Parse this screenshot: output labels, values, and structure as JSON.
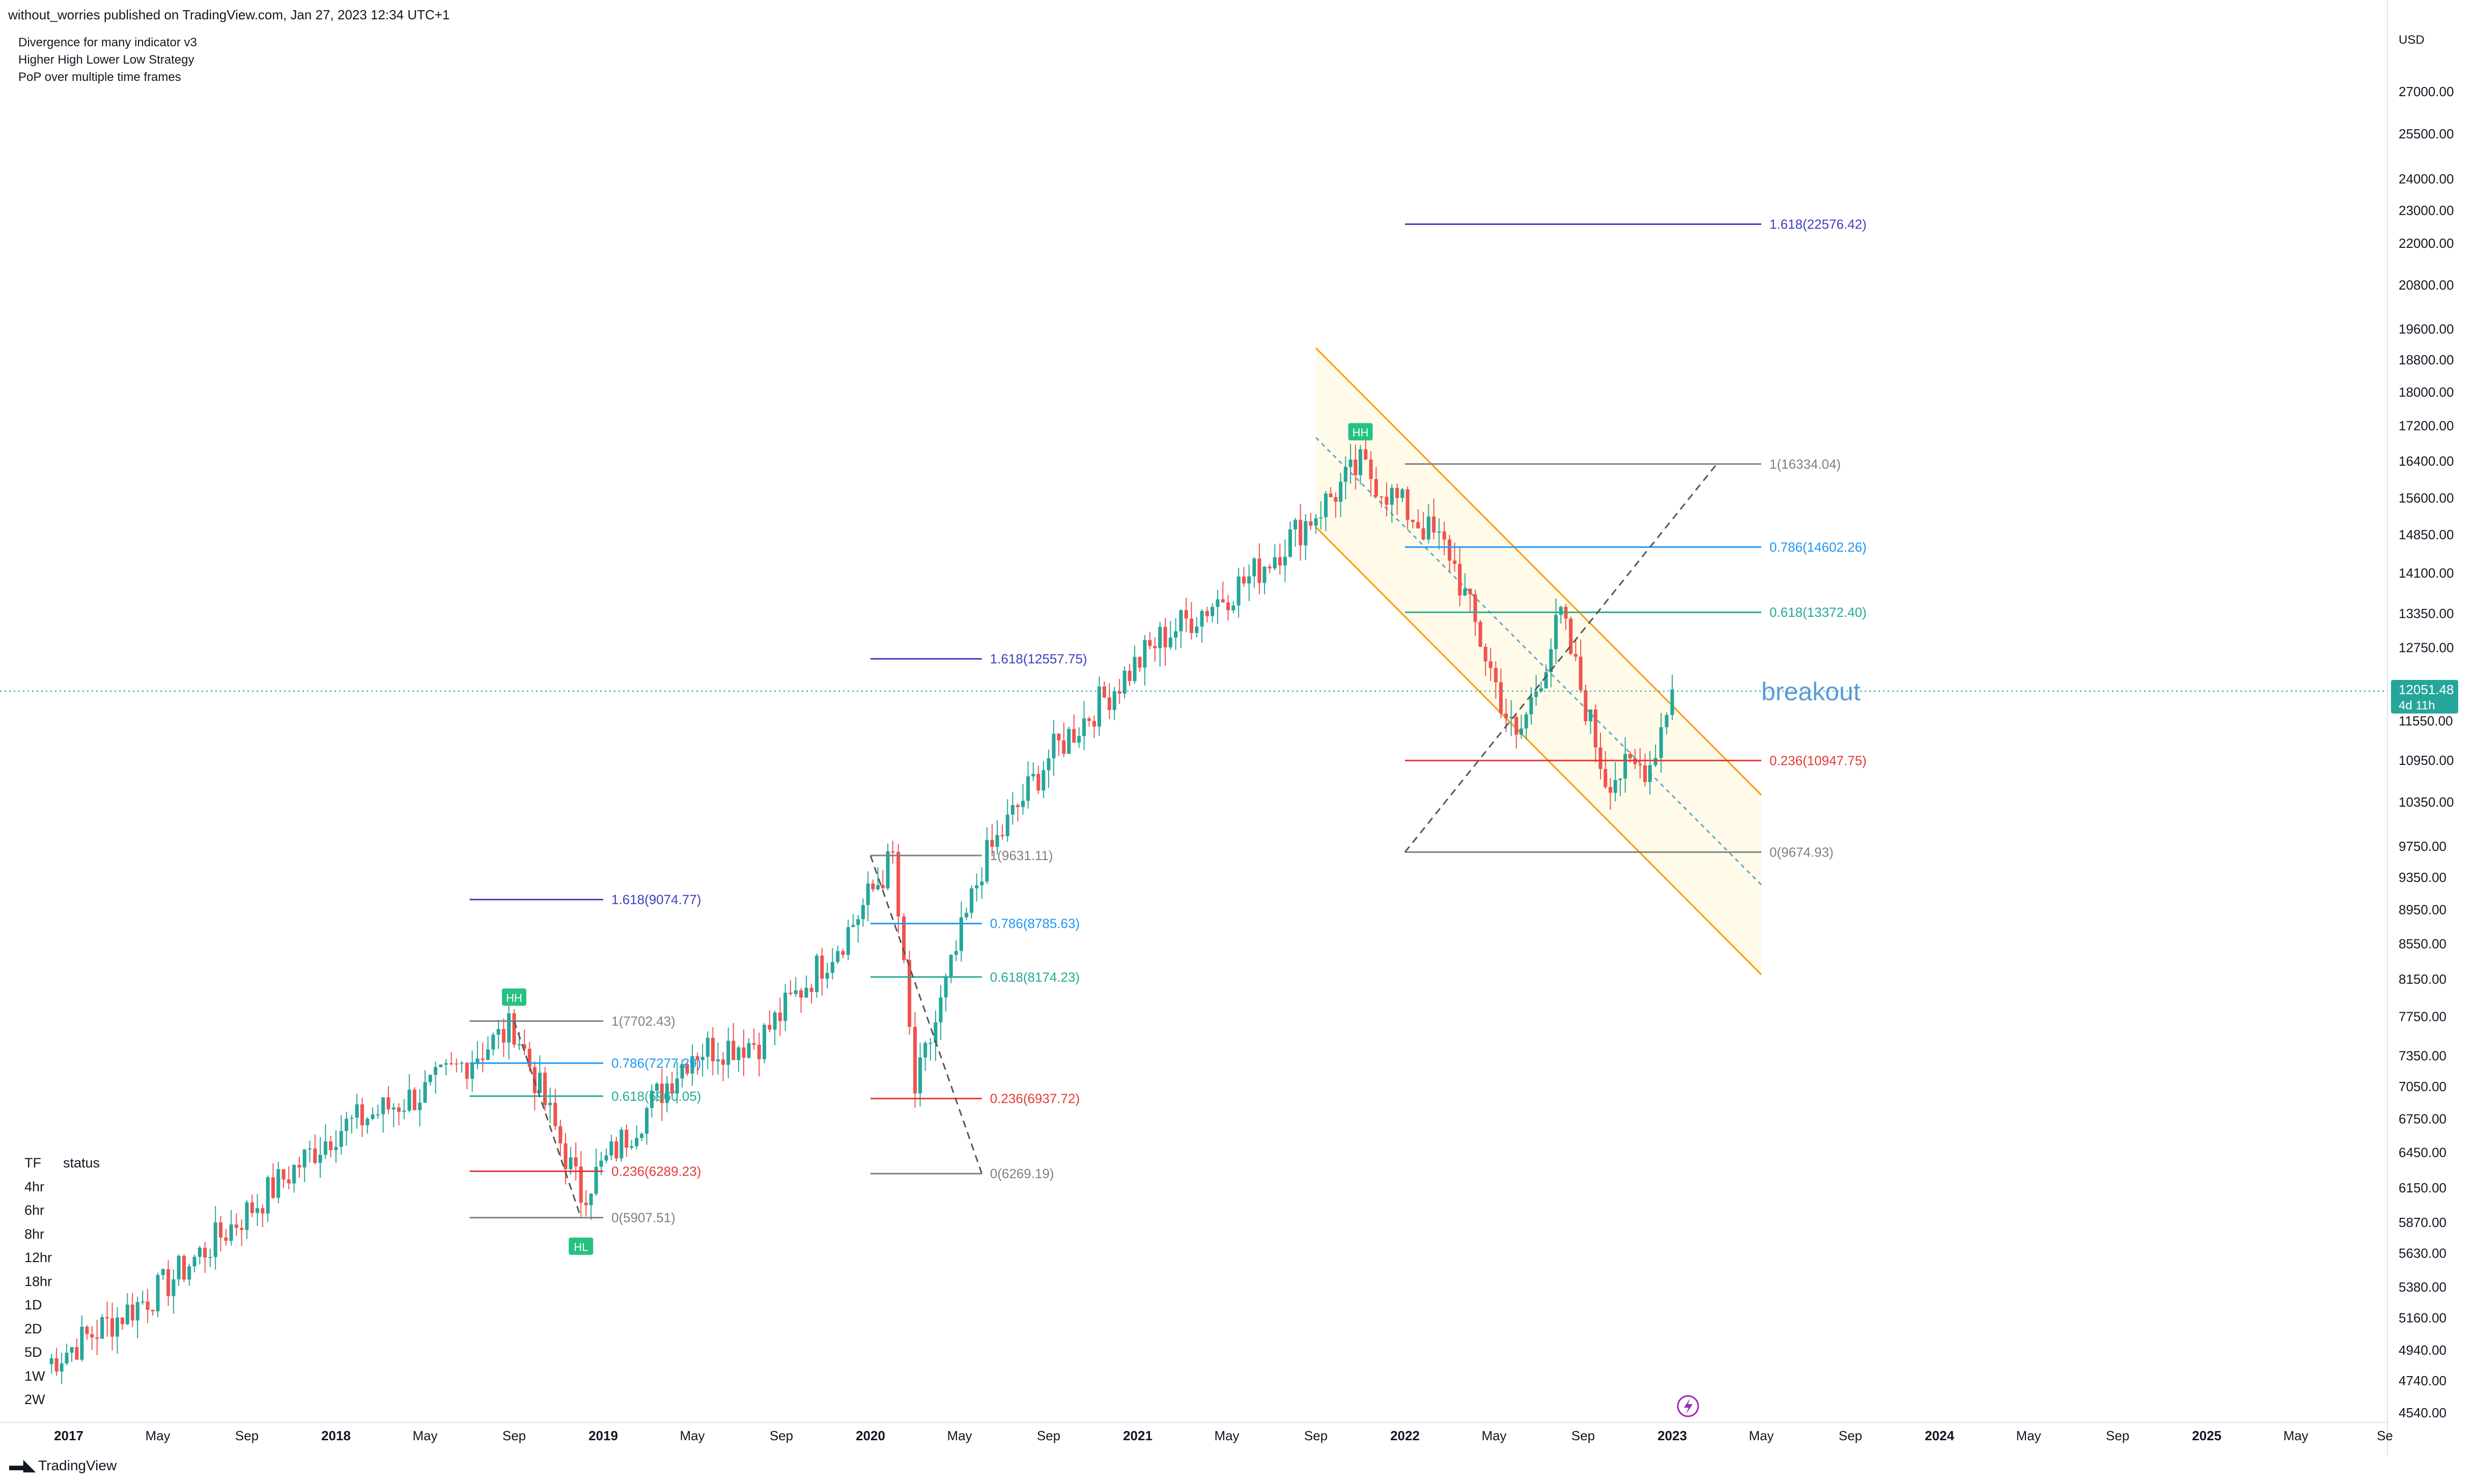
{
  "header": {
    "published_by": "without_worries published on TradingView.com, Jan 27, 2023 12:34 UTC+1"
  },
  "indicators": [
    "Divergence for many indicator v3",
    "Higher High Lower Low Strategy",
    "PoP over multiple time frames"
  ],
  "price_axis": {
    "currency": "USD",
    "ticks": [
      "27000.00",
      "25500.00",
      "24000.00",
      "23000.00",
      "22000.00",
      "20800.00",
      "19600.00",
      "18800.00",
      "18000.00",
      "17200.00",
      "16400.00",
      "15600.00",
      "14850.00",
      "14100.00",
      "13350.00",
      "12750.00",
      "11550.00",
      "10950.00",
      "10350.00",
      "9750.00",
      "9350.00",
      "8950.00",
      "8550.00",
      "8150.00",
      "7750.00",
      "7350.00",
      "7050.00",
      "6750.00",
      "6450.00",
      "6150.00",
      "5870.00",
      "5630.00",
      "5380.00",
      "5160.00",
      "4940.00",
      "4740.00",
      "4540.00"
    ],
    "current_price": "12051.48",
    "countdown": "4d 11h",
    "current_color": "#26a69a"
  },
  "time_axis": {
    "labels": [
      "2017",
      "May",
      "Sep",
      "2018",
      "May",
      "Sep",
      "2019",
      "May",
      "Sep",
      "2020",
      "May",
      "Sep",
      "2021",
      "May",
      "Sep",
      "2022",
      "May",
      "Sep",
      "2023",
      "May",
      "Sep",
      "2024",
      "May",
      "Sep",
      "2025",
      "May",
      "Se"
    ],
    "bold": [
      "2017",
      "2018",
      "2019",
      "2020",
      "2021",
      "2022",
      "2023",
      "2024",
      "2025"
    ]
  },
  "fib_sets": [
    {
      "levels": [
        {
          "label": "1.618(9074.77)",
          "color": "#3f3fbf"
        },
        {
          "label": "1(7702.43)",
          "color": "#808080"
        },
        {
          "label": "0.786(7277.29)",
          "color": "#2196f3"
        },
        {
          "label": "0.618(6960.05)",
          "color": "#22ab94"
        },
        {
          "label": "0.236(6289.23)",
          "color": "#e53935"
        },
        {
          "label": "0(5907.51)",
          "color": "#808080"
        }
      ]
    },
    {
      "levels": [
        {
          "label": "1.618(12557.75)",
          "color": "#3f3fbf"
        },
        {
          "label": "1(9631.11)",
          "color": "#808080"
        },
        {
          "label": "0.786(8785.63)",
          "color": "#2196f3"
        },
        {
          "label": "0.618(8174.23)",
          "color": "#22ab94"
        },
        {
          "label": "0.236(6937.72)",
          "color": "#e53935"
        },
        {
          "label": "0(6269.19)",
          "color": "#808080"
        }
      ]
    },
    {
      "levels": [
        {
          "label": "1.618(22576.42)",
          "color": "#3f3fbf"
        },
        {
          "label": "1(16334.04)",
          "color": "#808080"
        },
        {
          "label": "0.786(14602.26)",
          "color": "#2196f3"
        },
        {
          "label": "0.618(13372.40)",
          "color": "#22ab94"
        },
        {
          "label": "0.236(10947.75)",
          "color": "#e53935"
        },
        {
          "label": "0(9674.93)",
          "color": "#808080"
        }
      ]
    }
  ],
  "markers": {
    "hh_label": "HH",
    "hl_label": "HL"
  },
  "annotation": {
    "breakout": "breakout",
    "breakout_color": "#5b9bd5"
  },
  "tf_table": {
    "col_tf": "TF",
    "col_status": "status",
    "rows": [
      "4hr",
      "6hr",
      "8hr",
      "12hr",
      "18hr",
      "1D",
      "2D",
      "5D",
      "1W",
      "2W"
    ]
  },
  "colors": {
    "up": "#26a69a",
    "down": "#ef5350",
    "channel": "#ff9800",
    "channel_fill": "#fffbe6",
    "hh_bg": "#26c281"
  },
  "footer": {
    "brand": "TradingView"
  },
  "chart_data": {
    "type": "candlestick",
    "title": "",
    "xlabel": "",
    "ylabel": "USD",
    "scale": "log",
    "ylim": [
      4540,
      27000
    ],
    "timeframe": "weekly",
    "x_range": [
      "2017-01",
      "2025-12"
    ],
    "last_close": 12051.48,
    "anchor_closes": [
      {
        "date": "2016-12",
        "close": 4850
      },
      {
        "date": "2017-05",
        "close": 5350
      },
      {
        "date": "2017-09",
        "close": 5950
      },
      {
        "date": "2018-01",
        "close": 6650
      },
      {
        "date": "2018-05",
        "close": 7000
      },
      {
        "date": "2018-09",
        "close": 7650
      },
      {
        "date": "2018-12",
        "close": 6100
      },
      {
        "date": "2019-05",
        "close": 7400
      },
      {
        "date": "2019-08",
        "close": 7500
      },
      {
        "date": "2019-12",
        "close": 8700
      },
      {
        "date": "2020-02",
        "close": 9600
      },
      {
        "date": "2020-03",
        "close": 7000
      },
      {
        "date": "2020-06",
        "close": 9500
      },
      {
        "date": "2020-09",
        "close": 11000
      },
      {
        "date": "2021-02",
        "close": 12900
      },
      {
        "date": "2021-06",
        "close": 14000
      },
      {
        "date": "2021-09",
        "close": 15300
      },
      {
        "date": "2021-11",
        "close": 16300
      },
      {
        "date": "2022-03",
        "close": 14500
      },
      {
        "date": "2022-06",
        "close": 11200
      },
      {
        "date": "2022-08",
        "close": 13300
      },
      {
        "date": "2022-10",
        "close": 10700
      },
      {
        "date": "2022-12",
        "close": 10900
      },
      {
        "date": "2023-01",
        "close": 12051.48
      }
    ]
  }
}
